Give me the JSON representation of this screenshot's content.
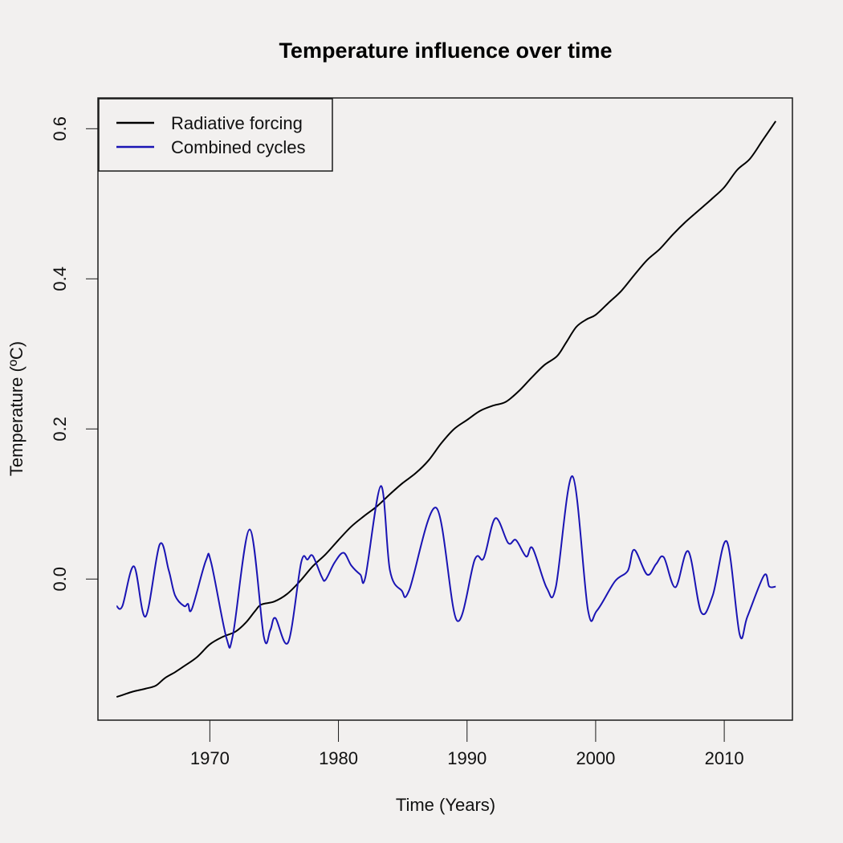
{
  "chart_data": {
    "type": "line",
    "title": "Temperature influence over time",
    "xlabel": "Time (Years)",
    "ylabel": "Temperature (ºC)",
    "xlim": [
      1961.3,
      2015.3
    ],
    "ylim": [
      -0.188,
      0.641
    ],
    "x_ticks": [
      1970,
      1980,
      1990,
      2000,
      2010
    ],
    "x_tick_labels": [
      "1970",
      "1980",
      "1990",
      "2000",
      "2010"
    ],
    "y_ticks": [
      0.0,
      0.2,
      0.4,
      0.6
    ],
    "y_tick_labels": [
      "0.0",
      "0.2",
      "0.4",
      "0.6"
    ],
    "grid": false,
    "legend": {
      "placement": "top-left",
      "entries": [
        {
          "label": "Radiative forcing",
          "color": "#000000"
        },
        {
          "label": "Combined cycles",
          "color": "#1a14b4"
        }
      ]
    },
    "series": [
      {
        "name": "Radiative forcing",
        "color": "#000000",
        "x": [
          1962.75,
          1963.3,
          1964.0,
          1965.0,
          1965.8,
          1966.5,
          1967.3,
          1968.0,
          1969.0,
          1970.0,
          1971.0,
          1972.0,
          1972.8,
          1973.5,
          1974.0,
          1975.0,
          1976.0,
          1977.0,
          1978.0,
          1979.0,
          1980.0,
          1981.0,
          1982.0,
          1983.0,
          1984.0,
          1985.0,
          1986.0,
          1987.0,
          1988.0,
          1989.0,
          1990.0,
          1991.0,
          1992.0,
          1993.0,
          1994.0,
          1995.0,
          1996.0,
          1997.0,
          1997.7,
          1998.5,
          1999.3,
          2000.0,
          2001.0,
          2002.0,
          2003.0,
          2004.0,
          2005.0,
          2006.0,
          2007.0,
          2008.0,
          2009.0,
          2010.0,
          2011.0,
          2012.0,
          2013.0,
          2014.0
        ],
        "y": [
          -0.157,
          -0.154,
          -0.15,
          -0.146,
          -0.142,
          -0.132,
          -0.124,
          -0.116,
          -0.104,
          -0.087,
          -0.077,
          -0.07,
          -0.058,
          -0.043,
          -0.034,
          -0.03,
          -0.02,
          -0.003,
          0.017,
          0.033,
          0.052,
          0.07,
          0.084,
          0.097,
          0.113,
          0.128,
          0.141,
          0.158,
          0.181,
          0.2,
          0.212,
          0.224,
          0.231,
          0.236,
          0.25,
          0.268,
          0.285,
          0.297,
          0.315,
          0.336,
          0.346,
          0.352,
          0.368,
          0.384,
          0.405,
          0.425,
          0.44,
          0.459,
          0.476,
          0.491,
          0.506,
          0.522,
          0.545,
          0.56,
          0.585,
          0.61
        ]
      },
      {
        "name": "Combined cycles",
        "color": "#1a14b4",
        "x": [
          1962.75,
          1963.2,
          1964.1,
          1965.0,
          1966.1,
          1966.8,
          1967.3,
          1968.0,
          1968.3,
          1968.6,
          1969.7,
          1970.1,
          1971.3,
          1971.8,
          1973.1,
          1974.2,
          1974.7,
          1975.1,
          1976.1,
          1977.1,
          1977.6,
          1978.0,
          1978.7,
          1979.0,
          1979.7,
          1980.4,
          1981.0,
          1981.7,
          1982.1,
          1983.3,
          1984.0,
          1984.9,
          1985.5,
          1987.6,
          1989.2,
          1990.6,
          1991.3,
          1992.2,
          1993.2,
          1993.8,
          1994.6,
          1995.1,
          1996.2,
          1996.9,
          1998.2,
          1999.4,
          2000.1,
          2001.5,
          2002.5,
          2003.0,
          2004.0,
          2004.7,
          2005.3,
          2006.2,
          2007.2,
          2008.2,
          2009.1,
          2010.2,
          2011.2,
          2011.8,
          2013.1,
          2013.5,
          2014.0
        ],
        "y": [
          -0.036,
          -0.036,
          0.017,
          -0.05,
          0.046,
          0.012,
          -0.022,
          -0.036,
          -0.033,
          -0.04,
          0.025,
          0.022,
          -0.079,
          -0.074,
          0.066,
          -0.077,
          -0.068,
          -0.052,
          -0.084,
          0.022,
          0.026,
          0.031,
          0.003,
          -0.001,
          0.022,
          0.035,
          0.018,
          0.006,
          0.003,
          0.124,
          0.012,
          -0.015,
          -0.015,
          0.095,
          -0.055,
          0.026,
          0.028,
          0.081,
          0.048,
          0.052,
          0.03,
          0.041,
          -0.012,
          -0.011,
          0.137,
          -0.041,
          -0.042,
          -0.003,
          0.011,
          0.039,
          0.006,
          0.02,
          0.029,
          -0.011,
          0.037,
          -0.044,
          -0.022,
          0.05,
          -0.074,
          -0.05,
          0.005,
          -0.01,
          -0.01
        ]
      }
    ]
  }
}
